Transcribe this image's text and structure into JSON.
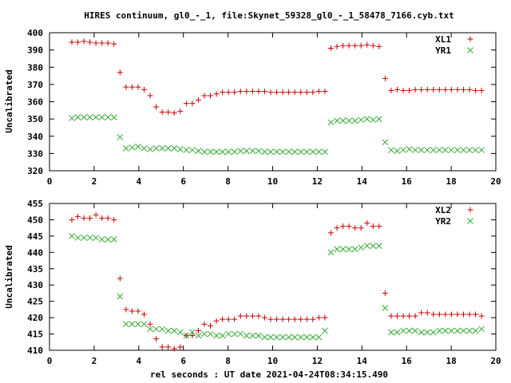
{
  "title": "HIRES continuum, gl0_-_1, file:Skynet_59328_gl0_-_1_58478_7166.cyb.txt",
  "xlabel": "rel seconds : UT date 2021-04-24T08:34:15.490",
  "colors": {
    "red": "#cc0000",
    "green": "#33aa33",
    "axis": "#000000"
  },
  "chart_data": [
    {
      "type": "scatter",
      "ylabel": "Uncalibrated",
      "xlim": [
        0,
        20
      ],
      "ylim": [
        320,
        400
      ],
      "xticks": [
        0,
        2,
        4,
        6,
        8,
        10,
        12,
        14,
        16,
        18,
        20
      ],
      "yticks": [
        320,
        330,
        340,
        350,
        360,
        370,
        380,
        390,
        400
      ],
      "legend_position": "top-right",
      "series": [
        {
          "name": "XL1",
          "marker": "plus",
          "color": "#cc0000",
          "x": [
            1.0,
            1.27,
            1.54,
            1.81,
            2.08,
            2.35,
            2.62,
            2.89,
            3.16,
            3.43,
            3.7,
            3.97,
            4.24,
            4.51,
            4.78,
            5.05,
            5.32,
            5.59,
            5.86,
            6.13,
            6.4,
            6.67,
            6.94,
            7.21,
            7.48,
            7.75,
            8.02,
            8.29,
            8.56,
            8.83,
            9.1,
            9.37,
            9.64,
            9.91,
            10.18,
            10.45,
            10.72,
            10.99,
            11.26,
            11.53,
            11.8,
            12.07,
            12.34,
            12.61,
            12.88,
            13.15,
            13.42,
            13.69,
            13.96,
            14.23,
            14.5,
            14.77,
            15.04,
            15.31,
            15.58,
            15.85,
            16.12,
            16.39,
            16.66,
            16.93,
            17.2,
            17.47,
            17.74,
            18.01,
            18.28,
            18.55,
            18.82,
            19.09,
            19.36
          ],
          "y": [
            394.5,
            394.5,
            395,
            394.5,
            394,
            394,
            394,
            393.5,
            377,
            368.5,
            368.5,
            368.5,
            367,
            363.5,
            357,
            354,
            354,
            353.5,
            354.5,
            359,
            359,
            361,
            363.5,
            363.5,
            364.5,
            365.5,
            365.5,
            365.5,
            366,
            366,
            366,
            366,
            366,
            365.5,
            365.5,
            365.5,
            365.5,
            365.5,
            365.5,
            365.5,
            365.5,
            366,
            366,
            391,
            392,
            392.5,
            392.5,
            392.5,
            392.5,
            393,
            392.5,
            392,
            373.5,
            366.5,
            367,
            366.5,
            366.5,
            367,
            367,
            367,
            367,
            367,
            367,
            367,
            367,
            367,
            367,
            366.5,
            366.5
          ],
          "x_fixed": true
        },
        {
          "name": "YR1",
          "marker": "cross",
          "color": "#33aa33",
          "x": [
            1.0,
            1.27,
            1.54,
            1.81,
            2.08,
            2.35,
            2.62,
            2.89,
            3.16,
            3.43,
            3.7,
            3.97,
            4.24,
            4.51,
            4.78,
            5.05,
            5.32,
            5.59,
            5.86,
            6.13,
            6.4,
            6.67,
            6.94,
            7.21,
            7.48,
            7.75,
            8.02,
            8.29,
            8.56,
            8.83,
            9.1,
            9.37,
            9.64,
            9.91,
            10.18,
            10.45,
            10.72,
            10.99,
            11.26,
            11.53,
            11.8,
            12.07,
            12.34,
            12.61,
            12.88,
            13.15,
            13.42,
            13.69,
            13.96,
            14.23,
            14.5,
            14.77,
            15.04,
            15.31,
            15.58,
            15.85,
            16.12,
            16.39,
            16.66,
            16.93,
            17.2,
            17.47,
            17.74,
            18.01,
            18.28,
            18.55,
            18.82,
            19.09,
            19.36
          ],
          "y": [
            350.5,
            351,
            351,
            351,
            351,
            351,
            351,
            351,
            339.5,
            333,
            333.5,
            334,
            333,
            332.5,
            333,
            333,
            333,
            333,
            332.5,
            332,
            332,
            331.5,
            331,
            331,
            331,
            331,
            331,
            331,
            331.5,
            331.5,
            331.5,
            331.5,
            331,
            331,
            331,
            331,
            331,
            331,
            331,
            331,
            331,
            331,
            331,
            348,
            349,
            349,
            349,
            349,
            349.5,
            350,
            349.5,
            350,
            336.5,
            332,
            331.5,
            332,
            332.5,
            332,
            332,
            332,
            332,
            332,
            332,
            332,
            332,
            332,
            332,
            332,
            332
          ]
        }
      ]
    },
    {
      "type": "scatter",
      "ylabel": "Uncalibrated",
      "xlim": [
        0,
        20
      ],
      "ylim": [
        410,
        455
      ],
      "xticks": [
        0,
        2,
        4,
        6,
        8,
        10,
        12,
        14,
        16,
        18,
        20
      ],
      "yticks": [
        410,
        415,
        420,
        425,
        430,
        435,
        440,
        445,
        450,
        455
      ],
      "legend_position": "top-right",
      "series": [
        {
          "name": "XL2",
          "marker": "plus",
          "color": "#cc0000",
          "x": [
            1.0,
            1.27,
            1.54,
            1.81,
            2.08,
            2.35,
            2.62,
            2.89,
            3.16,
            3.43,
            3.7,
            3.97,
            4.24,
            4.51,
            4.78,
            5.05,
            5.32,
            5.59,
            5.86,
            6.13,
            6.4,
            6.67,
            6.94,
            7.21,
            7.48,
            7.75,
            8.02,
            8.29,
            8.56,
            8.83,
            9.1,
            9.37,
            9.64,
            9.91,
            10.18,
            10.45,
            10.72,
            10.99,
            11.26,
            11.53,
            11.8,
            12.07,
            12.34,
            12.61,
            12.88,
            13.15,
            13.42,
            13.69,
            13.96,
            14.23,
            14.5,
            14.77,
            15.04,
            15.31,
            15.58,
            15.85,
            16.12,
            16.39,
            16.66,
            16.93,
            17.2,
            17.47,
            17.74,
            18.01,
            18.28,
            18.55,
            18.82,
            19.09,
            19.36
          ],
          "y": [
            450,
            451,
            450.5,
            450.5,
            451.5,
            450.5,
            450.5,
            450,
            432,
            422.5,
            422,
            422,
            421,
            418,
            413.5,
            411,
            411,
            410.5,
            411,
            414.5,
            414.5,
            416,
            418,
            417.5,
            419,
            419.5,
            419.5,
            419.5,
            420.5,
            420.5,
            420.5,
            420.5,
            420,
            419.5,
            419.5,
            419.5,
            419.5,
            419.5,
            419.5,
            419.5,
            419.5,
            420,
            420,
            446,
            447.5,
            448,
            448,
            447.5,
            447.5,
            449,
            448,
            448,
            427.5,
            420.5,
            420.5,
            420.5,
            420.5,
            420.5,
            421.5,
            421.5,
            421,
            421,
            421,
            421,
            421,
            421,
            421,
            421,
            420.5
          ]
        },
        {
          "name": "YR2",
          "marker": "cross",
          "color": "#33aa33",
          "x": [
            1.0,
            1.27,
            1.54,
            1.81,
            2.08,
            2.35,
            2.62,
            2.89,
            3.16,
            3.43,
            3.7,
            3.97,
            4.24,
            4.51,
            4.78,
            5.05,
            5.32,
            5.59,
            5.86,
            6.13,
            6.4,
            6.67,
            6.94,
            7.21,
            7.48,
            7.75,
            8.02,
            8.29,
            8.56,
            8.83,
            9.1,
            9.37,
            9.64,
            9.91,
            10.18,
            10.45,
            10.72,
            10.99,
            11.26,
            11.53,
            11.8,
            12.07,
            12.34,
            12.61,
            12.88,
            13.15,
            13.42,
            13.69,
            13.96,
            14.23,
            14.5,
            14.77,
            15.04,
            15.31,
            15.58,
            15.85,
            16.12,
            16.39,
            16.66,
            16.93,
            17.2,
            17.47,
            17.74,
            18.01,
            18.28,
            18.55,
            18.82,
            19.09,
            19.36
          ],
          "y": [
            445,
            444.5,
            444.5,
            444.5,
            444.5,
            444,
            444,
            444,
            426.5,
            418,
            418,
            418,
            418,
            416.5,
            416.5,
            416.5,
            416,
            416,
            415.5,
            414.5,
            415.5,
            414.5,
            415,
            415,
            414.5,
            414.5,
            415,
            415,
            415,
            414.5,
            414.5,
            414.5,
            414,
            414,
            414,
            414,
            414,
            414,
            414,
            414,
            414,
            414,
            416,
            440,
            441,
            441,
            441,
            441,
            441.5,
            442,
            442,
            442,
            423,
            415.5,
            415.5,
            416,
            416,
            416,
            415.5,
            415.5,
            415.5,
            416,
            416,
            416,
            416,
            416,
            416,
            416,
            416.5
          ]
        }
      ]
    }
  ]
}
